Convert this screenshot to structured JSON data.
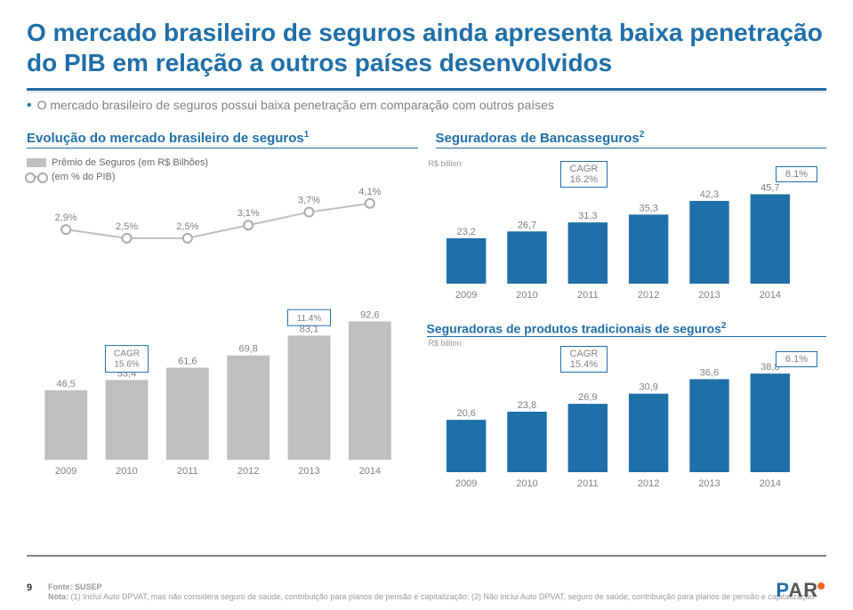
{
  "title": "O mercado brasileiro de seguros ainda apresenta baixa penetração do PIB em relação a outros países desenvolvidos",
  "bullet": "O mercado brasileiro de seguros possui baixa penetração em comparação com outros países",
  "left_section_title": "Evolução do mercado brasileiro de seguros",
  "left_section_sup": "1",
  "right_section_title": "Seguradoras de Bancasseguros",
  "right_section_sup": "2",
  "legend_bar": "Prêmio de Seguros (em R$ Bilhões)",
  "legend_line": "(em % do PIB)",
  "chart_left": {
    "type": "bar+line",
    "categories": [
      "2009",
      "2010",
      "2011",
      "2012",
      "2013",
      "2014"
    ],
    "bar_values": [
      46.5,
      53.4,
      61.6,
      69.8,
      83.1,
      92.6
    ],
    "bar_labels": [
      "46,5",
      "53,4",
      "61,6",
      "69,8",
      "83,1",
      "92,6"
    ],
    "line_values": [
      2.9,
      2.5,
      2.5,
      3.1,
      3.7,
      4.1
    ],
    "line_labels": [
      "2,9%",
      "2,5%",
      "2,5%",
      "3,1%",
      "3,7%",
      "4,1%"
    ],
    "bar_color": "#bfbfbf",
    "line_color": "#bfbfbf",
    "point_stroke": "#aaaaaa",
    "label_fontsize": 11,
    "axis_fontsize": 11,
    "cagr_text": "CAGR",
    "cagr_value": "15.6%",
    "cagr2_value": "11.4%",
    "ymax_bar": 100,
    "ymax_line": 4.5
  },
  "unit_text": "R$ billion",
  "chart_top_right": {
    "type": "bar",
    "categories": [
      "2009",
      "2010",
      "2011",
      "2012",
      "2013",
      "2014"
    ],
    "values": [
      23.2,
      26.7,
      31.3,
      35.3,
      42.3,
      45.7
    ],
    "labels": [
      "23,2",
      "26,7",
      "31,3",
      "35,3",
      "42,3",
      "45,7"
    ],
    "bar_color": "#1f6fa8",
    "ymax": 50,
    "cagr_text": "CAGR",
    "cagr_value": "16.2%",
    "cagr2_value": "8.1%"
  },
  "right_sub_title": "Seguradoras de produtos tradicionais de seguros",
  "right_sub_sup": "2",
  "chart_bot_right": {
    "type": "bar",
    "categories": [
      "2009",
      "2010",
      "2011",
      "2012",
      "2013",
      "2014"
    ],
    "values": [
      20.6,
      23.8,
      26.9,
      30.9,
      36.6,
      38.8
    ],
    "labels": [
      "20,6",
      "23,8",
      "26,9",
      "30,9",
      "36,6",
      "38,8"
    ],
    "bar_color": "#1f6fa8",
    "ymax": 42,
    "cagr_text": "CAGR",
    "cagr_value": "15.4%",
    "cagr2_value": "6.1%"
  },
  "page_num": "9",
  "foot_source": "Fonte: SUSEP",
  "foot_note_label": "Nota:",
  "foot_note": "(1) Inclui Auto DPVAT, mas não considera seguro de saúde, contribuição para planos de pensão e capitalização; (2) Não inclui Auto DPVAT, seguro de saúde, contribuição para planos de pensão e capitalização",
  "logo_p": "P",
  "logo_ar": "AR"
}
